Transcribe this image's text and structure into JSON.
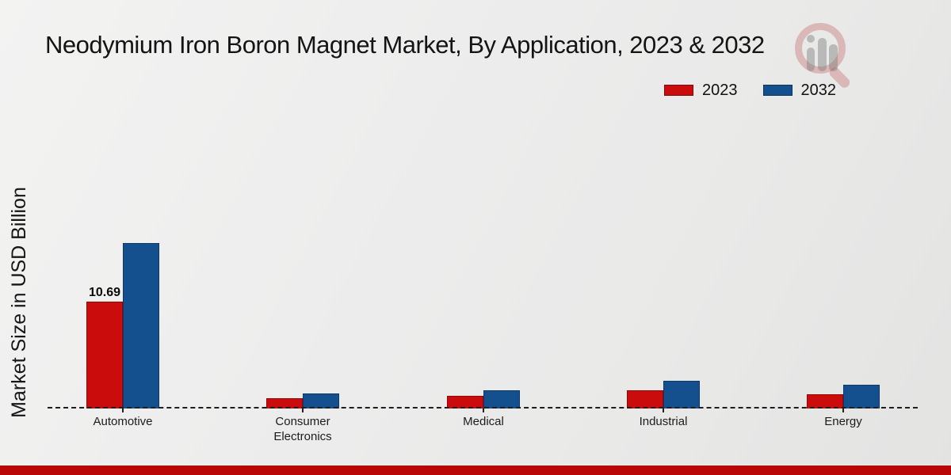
{
  "title": "Neodymium Iron Boron Magnet Market, By Application, 2023 & 2032",
  "ylabel": "Market Size in USD Billion",
  "colors": {
    "series_2023": "#cb0c0c",
    "series_2032": "#14508e",
    "footer_bar": "#b90606",
    "baseline": "#1e1e1e"
  },
  "legend": {
    "position": "top-right",
    "items": [
      {
        "label": "2023",
        "color": "#cb0c0c"
      },
      {
        "label": "2032",
        "color": "#14508e"
      }
    ]
  },
  "watermark": {
    "icon": "magnifier-bar-chart-logo"
  },
  "chart_data": {
    "type": "bar",
    "title": "Neodymium Iron Boron Magnet Market, By Application, 2023 & 2032",
    "xlabel": "",
    "ylabel": "Market Size in USD Billion",
    "categories": [
      "Automotive",
      "Consumer Electronics",
      "Medical",
      "Industrial",
      "Energy"
    ],
    "series": [
      {
        "name": "2023",
        "color": "#cb0c0c",
        "values": [
          10.69,
          1.05,
          1.24,
          1.8,
          1.45
        ]
      },
      {
        "name": "2032",
        "color": "#14508e",
        "values": [
          16.55,
          1.53,
          1.85,
          2.8,
          2.41
        ]
      }
    ],
    "annotations": [
      {
        "series": "2023",
        "category": "Automotive",
        "text": "10.69"
      }
    ],
    "ylim": [
      0,
      18
    ],
    "grid": false,
    "y_axis_ticks": false,
    "baseline_style": "dashed",
    "legend_position": "top-right"
  }
}
